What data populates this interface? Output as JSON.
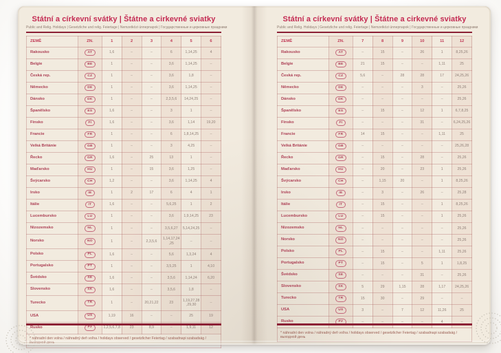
{
  "page": {
    "title": "Státní a církevní svátky | Štátne a cirkevné sviatky",
    "subtitle": "Public and Relig. Holidays | Gesetzliche und relig. Feiertage | Nemzetközi ünnepnapok | Государственные и церковные праздники",
    "footnote": "* náhradní den volna / náhradný deň voľna / holidays observed / gesetzlicher Feiertag / szabadnapi szabadság / выходной день"
  },
  "table": {
    "country_header": "ZEMĚ",
    "code_header": "ZN.",
    "left_month_headers": [
      "1",
      "2",
      "3",
      "4",
      "5",
      "6"
    ],
    "right_month_headers": [
      "7",
      "8",
      "9",
      "10",
      "11",
      "12"
    ],
    "dash": "–",
    "countries": [
      {
        "name": "Rakousko",
        "code": "AT",
        "m": [
          "1,6",
          "–",
          "–",
          "6",
          "1,14,25",
          "4",
          "–",
          "15",
          "–",
          "26",
          "1",
          "8,25,26"
        ]
      },
      {
        "name": "Belgie",
        "code": "BE",
        "m": [
          "1",
          "–",
          "–",
          "3,6",
          "1,14,25",
          "–",
          "21",
          "15",
          "–",
          "–",
          "1,11",
          "25"
        ]
      },
      {
        "name": "Česká rep.",
        "code": "CZ",
        "m": [
          "1",
          "–",
          "–",
          "3,6",
          "1,8",
          "–",
          "5,6",
          "–",
          "28",
          "28",
          "17",
          "24,25,26"
        ]
      },
      {
        "name": "Německo",
        "code": "DE",
        "m": [
          "1",
          "–",
          "–",
          "3,6",
          "1,14,25",
          "–",
          "–",
          "–",
          "–",
          "3",
          "–",
          "25,26"
        ]
      },
      {
        "name": "Dánsko",
        "code": "DK",
        "m": [
          "1",
          "–",
          "–",
          "2,3,5,6",
          "14,24,25",
          "–",
          "–",
          "–",
          "–",
          "–",
          "–",
          "25,26"
        ]
      },
      {
        "name": "Španělsko",
        "code": "ES",
        "m": [
          "1,6",
          "–",
          "–",
          "3",
          "1",
          "–",
          "–",
          "15",
          "–",
          "12",
          "1",
          "6,7,8,25"
        ]
      },
      {
        "name": "Finsko",
        "code": "FI",
        "m": [
          "1,6",
          "–",
          "–",
          "3,6",
          "1,14",
          "19,20",
          "–",
          "–",
          "–",
          "31",
          "–",
          "6,24,25,26"
        ]
      },
      {
        "name": "Francie",
        "code": "FR",
        "m": [
          "1",
          "–",
          "–",
          "6",
          "1,8,14,25",
          "–",
          "14",
          "15",
          "–",
          "–",
          "1,11",
          "25"
        ]
      },
      {
        "name": "Velká Británie",
        "code": "GB",
        "m": [
          "1",
          "–",
          "–",
          "3",
          "4,25",
          "–",
          "–",
          "–",
          "–",
          "–",
          "–",
          "25,26,28"
        ]
      },
      {
        "name": "Řecko",
        "code": "GR",
        "m": [
          "1,6",
          "–",
          "25",
          "13",
          "1",
          "–",
          "–",
          "15",
          "–",
          "28",
          "–",
          "25,26"
        ]
      },
      {
        "name": "Maďarsko",
        "code": "HU",
        "m": [
          "1",
          "–",
          "15",
          "3,6",
          "1,25",
          "–",
          "–",
          "20",
          "–",
          "23",
          "1",
          "25,26"
        ]
      },
      {
        "name": "Švýcarsko",
        "code": "CH",
        "m": [
          "1,2",
          "–",
          "–",
          "3,6",
          "1,14,25",
          "4",
          "–",
          "1,15",
          "20",
          "–",
          "1",
          "8,25,26"
        ]
      },
      {
        "name": "Irsko",
        "code": "IE",
        "m": [
          "1",
          "2",
          "17",
          "6",
          "4",
          "1",
          "–",
          "3",
          "–",
          "26",
          "–",
          "25,28"
        ]
      },
      {
        "name": "Itálie",
        "code": "IT",
        "m": [
          "1,6",
          "–",
          "–",
          "5,6,25",
          "1",
          "2",
          "–",
          "15",
          "–",
          "–",
          "1",
          "8,25,26"
        ]
      },
      {
        "name": "Lucembursko",
        "code": "LU",
        "m": [
          "1",
          "–",
          "–",
          "3,6",
          "1,9,14,25",
          "23",
          "–",
          "15",
          "–",
          "–",
          "1",
          "25,26"
        ]
      },
      {
        "name": "Nizozemsko",
        "code": "NL",
        "m": [
          "1",
          "–",
          "–",
          "3,5,6,27",
          "5,14,24,25",
          "–",
          "–",
          "–",
          "–",
          "–",
          "–",
          "25,26"
        ]
      },
      {
        "name": "Norsko",
        "code": "NO",
        "m": [
          "1",
          "–",
          "2,3,5,6",
          "1,14,17,24,25",
          "–",
          "–",
          "–",
          "–",
          "–",
          "–",
          "–",
          "25,26"
        ]
      },
      {
        "name": "Polsko",
        "code": "PL",
        "m": [
          "1,6",
          "–",
          "–",
          "5,6",
          "1,3,24",
          "4",
          "–",
          "15",
          "–",
          "–",
          "1,11",
          "25,26"
        ]
      },
      {
        "name": "Portugalsko",
        "code": "PT",
        "m": [
          "1",
          "–",
          "–",
          "3,5,25",
          "1",
          "4,10",
          "–",
          "15",
          "–",
          "5",
          "1",
          "1,8,25"
        ]
      },
      {
        "name": "Švédsko",
        "code": "SE",
        "m": [
          "1,6",
          "–",
          "–",
          "3,5,6",
          "1,14,24",
          "6,20",
          "–",
          "–",
          "–",
          "31",
          "–",
          "25,26"
        ]
      },
      {
        "name": "Slovensko",
        "code": "SK",
        "m": [
          "1,6",
          "–",
          "–",
          "3,5,6",
          "1,8",
          "–",
          "5",
          "29",
          "1,15",
          "28",
          "1,17",
          "24,25,26"
        ]
      },
      {
        "name": "Turecko",
        "code": "TR",
        "m": [
          "1",
          "–",
          "20,21,22",
          "23",
          "1,19,27,28,29,30",
          "–",
          "15",
          "30",
          "–",
          "29",
          "–",
          "–"
        ]
      },
      {
        "name": "USA",
        "code": "US",
        "m": [
          "1,19",
          "16",
          "–",
          "–",
          "25",
          "19",
          "3",
          "–",
          "7",
          "12",
          "11,26",
          "25"
        ]
      },
      {
        "name": "Rusko",
        "code": "РУ",
        "m": [
          "1,2,5,6,7,8",
          "23",
          "8,9",
          "–",
          "1,9,11",
          "12",
          "–",
          "–",
          "–",
          "–",
          "4",
          "–"
        ]
      }
    ]
  },
  "colors": {
    "accent": "#c42a52",
    "rule": "#8c2136",
    "page": "#f2ebdf",
    "grid": "#c08080"
  }
}
